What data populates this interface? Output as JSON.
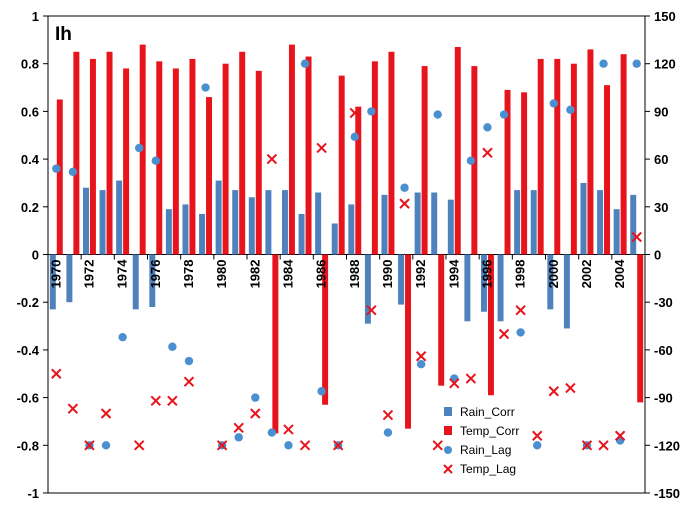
{
  "chart_data": {
    "type": "bar",
    "title": "Ih",
    "x_categories": [
      1970,
      1971,
      1972,
      1973,
      1974,
      1975,
      1976,
      1977,
      1978,
      1979,
      1980,
      1981,
      1982,
      1983,
      1984,
      1985,
      1986,
      1987,
      1988,
      1989,
      1990,
      1991,
      1992,
      1993,
      1994,
      1995,
      1996,
      1997,
      1998,
      1999,
      2000,
      2001,
      2002,
      2003,
      2004,
      2005
    ],
    "x_tick_labels": [
      "1970",
      "1972",
      "1974",
      "1976",
      "1978",
      "1980",
      "1982",
      "1984",
      "1986",
      "1988",
      "1990",
      "1992",
      "1994",
      "1996",
      "1998",
      "2000",
      "2002",
      "2004"
    ],
    "y_left": {
      "min": -1,
      "max": 1,
      "ticks": [
        "-1",
        "-0.8",
        "-0.6",
        "-0.4",
        "-0.2",
        "0",
        "0.2",
        "0.4",
        "0.6",
        "0.8",
        "1"
      ]
    },
    "y_right": {
      "min": -150,
      "max": 150,
      "ticks": [
        "-150",
        "-120",
        "-90",
        "-60",
        "-30",
        "0",
        "30",
        "60",
        "90",
        "120",
        "150"
      ]
    },
    "grid": false,
    "legend_position": "bottom-right",
    "colors": {
      "rain_corr": "#4f81bd",
      "temp_corr": "#e8141c",
      "rain_lag": "#4a90d0",
      "temp_lag": "#e8141c"
    },
    "series": [
      {
        "name": "Rain_Corr",
        "kind": "bar",
        "axis": "left",
        "values": [
          -0.23,
          -0.2,
          0.28,
          0.27,
          0.31,
          -0.23,
          -0.22,
          0.19,
          0.21,
          0.17,
          0.31,
          0.27,
          0.24,
          0.27,
          0.27,
          0.17,
          0.26,
          0.13,
          0.21,
          -0.29,
          0.25,
          -0.21,
          0.26,
          0.26,
          0.23,
          -0.28,
          -0.24,
          -0.28,
          0.27,
          0.27,
          -0.23,
          -0.31,
          0.3,
          0.27,
          0.19,
          0.25
        ]
      },
      {
        "name": "Temp_Corr",
        "kind": "bar",
        "axis": "left",
        "values": [
          0.65,
          0.85,
          0.82,
          0.85,
          0.78,
          0.88,
          0.81,
          0.78,
          0.82,
          0.66,
          0.8,
          0.85,
          0.77,
          -0.75,
          0.88,
          0.83,
          -0.63,
          0.75,
          0.62,
          0.81,
          0.85,
          -0.73,
          0.79,
          -0.55,
          0.87,
          0.79,
          -0.59,
          0.69,
          0.68,
          0.82,
          0.82,
          0.8,
          0.86,
          0.71,
          0.84,
          -0.62
        ]
      },
      {
        "name": "Rain_Lag",
        "kind": "scatter",
        "axis": "right",
        "values": [
          54,
          52,
          -120,
          -120,
          -52,
          67,
          59,
          -58,
          -67,
          105,
          -120,
          -115,
          -90,
          -112,
          -120,
          120,
          -86,
          -120,
          74,
          90,
          -112,
          42,
          -69,
          88,
          -78,
          59,
          80,
          88,
          -49,
          -120,
          95,
          91,
          -120,
          120,
          -117,
          120
        ]
      },
      {
        "name": "Temp_Lag",
        "kind": "scatter",
        "axis": "right",
        "values": [
          -75,
          -97,
          -120,
          -100,
          null,
          -120,
          -92,
          -92,
          -80,
          null,
          -120,
          -109,
          -100,
          60,
          -110,
          -120,
          67,
          -120,
          89,
          -35,
          -101,
          32,
          -64,
          -120,
          -81,
          -78,
          64,
          -50,
          -35,
          -114,
          -86,
          -84,
          -120,
          -120,
          -114,
          11
        ]
      }
    ]
  }
}
